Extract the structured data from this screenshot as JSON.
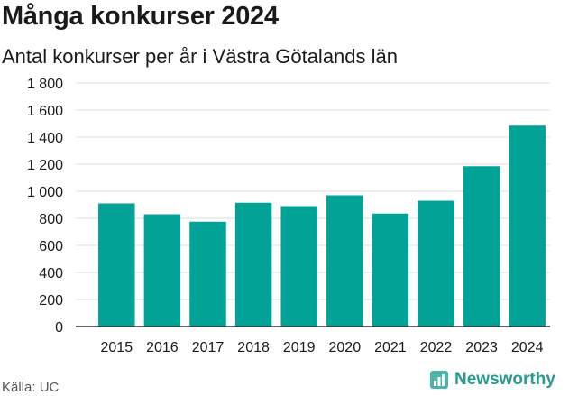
{
  "title": "Många konkurser 2024",
  "subtitle": "Antal konkurser per år i Västra Götalands län",
  "source": "Källa: UC",
  "brand": {
    "name": "Newsworthy",
    "icon": "newsworthy-logo-icon",
    "color": "#2b9a8f"
  },
  "chart_data": {
    "type": "bar",
    "categories": [
      "2015",
      "2016",
      "2017",
      "2018",
      "2019",
      "2020",
      "2021",
      "2022",
      "2023",
      "2024"
    ],
    "values": [
      910,
      830,
      775,
      915,
      890,
      970,
      835,
      930,
      1185,
      1485
    ],
    "ylim": [
      0,
      1800
    ],
    "yticks": [
      0,
      200,
      400,
      600,
      800,
      1000,
      1200,
      1400,
      1600,
      1800
    ],
    "ytick_labels": [
      "0",
      "200",
      "400",
      "600",
      "800",
      "1 000",
      "1 200",
      "1 400",
      "1 600",
      "1 800"
    ],
    "grid": true,
    "legend": "none",
    "bar_color": "#00a396",
    "grid_color": "#dddddd",
    "axis_color": "#333333"
  }
}
